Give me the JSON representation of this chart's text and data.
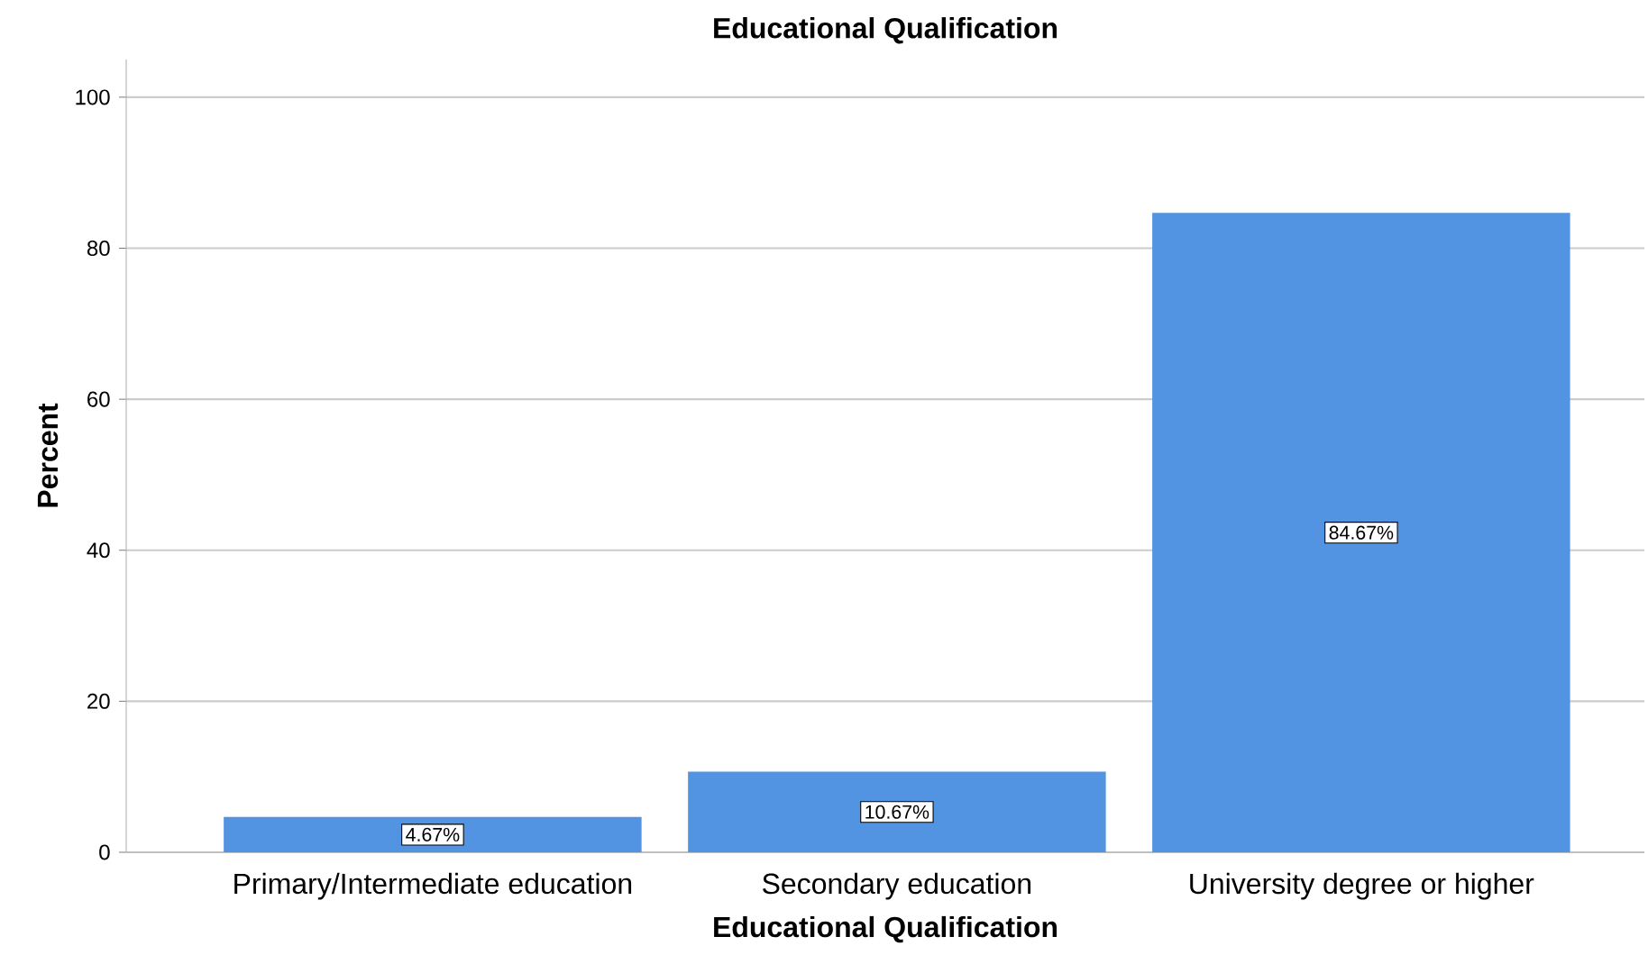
{
  "chart_data": {
    "type": "bar",
    "title": "Educational Qualification",
    "xlabel": "Educational Qualification",
    "ylabel": "Percent",
    "categories": [
      "Primary/Intermediate education",
      "Secondary education",
      "University degree or higher"
    ],
    "values": [
      4.67,
      10.67,
      84.67
    ],
    "value_labels": [
      "4.67%",
      "10.67%",
      "84.67%"
    ],
    "color": "#5294e2",
    "ylim": [
      0,
      105
    ],
    "yticks": [
      0,
      20,
      40,
      60,
      80,
      100
    ],
    "grid": "y"
  }
}
